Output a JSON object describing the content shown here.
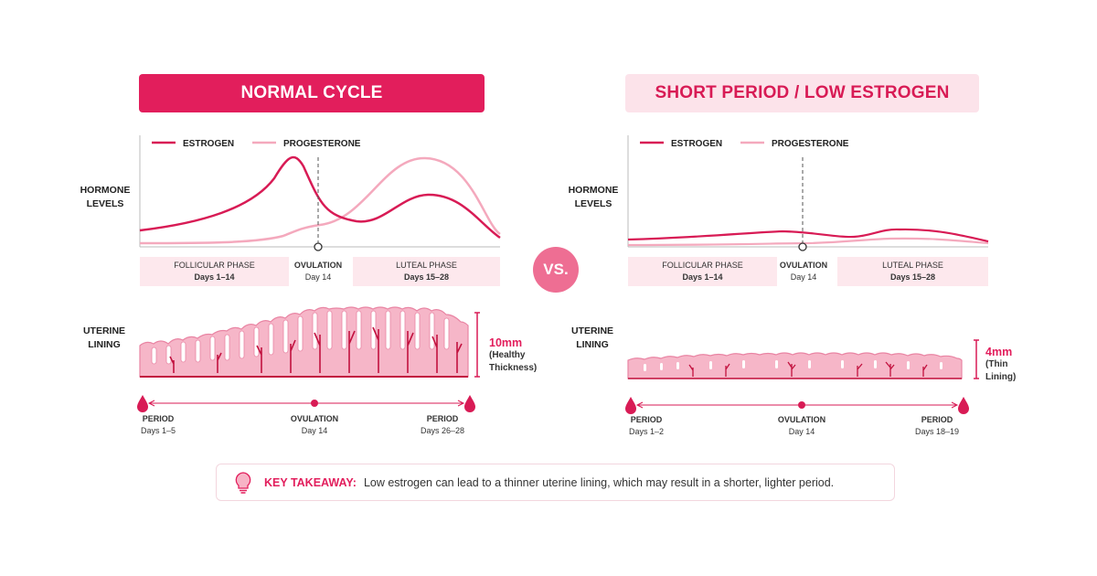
{
  "vs_label": "VS.",
  "takeaway": {
    "label": "KEY TAKEAWAY:",
    "text": "Low estrogen can lead to a thinner uterine lining, which may result in a shorter, lighter period."
  },
  "colors": {
    "accent": "#e21e5c",
    "estrogen": "#d81b55",
    "progesterone": "#f4a9bd",
    "lining": "#f6b6c8"
  },
  "panels": {
    "left": {
      "title": "NORMAL CYCLE",
      "hormone_label_1": "HORMONE",
      "hormone_label_2": "LEVELS",
      "legend_estrogen": "ESTROGEN",
      "legend_progesterone": "PROGESTERONE",
      "follicular_phase": "FOLLICULAR PHASE",
      "follicular_days": "Days 1–14",
      "ovulation": "OVULATION",
      "ovulation_day": "Day 14",
      "luteal_phase": "LUTEAL PHASE",
      "luteal_days": "Days 15–28",
      "uterine_1": "UTERINE",
      "uterine_2": "LINING",
      "thickness": "10mm",
      "thickness_note_1": "(Healthy",
      "thickness_note_2": "Thickness)",
      "period_start": "PERIOD",
      "period_start_days": "Days 1–5",
      "timeline_ovulation": "OVULATION",
      "timeline_ovulation_day": "Day 14",
      "period_end": "PERIOD",
      "period_end_days": "Days 26–28"
    },
    "right": {
      "title": "SHORT PERIOD / LOW ESTROGEN",
      "hormone_label_1": "HORMONE",
      "hormone_label_2": "LEVELS",
      "legend_estrogen": "ESTROGEN",
      "legend_progesterone": "PROGESTERONE",
      "follicular_phase": "FOLLICULAR PHASE",
      "follicular_days": "Days 1–14",
      "ovulation": "OVULATION",
      "ovulation_day": "Day 14",
      "luteal_phase": "LUTEAL PHASE",
      "luteal_days": "Days 15–28",
      "uterine_1": "UTERINE",
      "uterine_2": "LINING",
      "thickness": "4mm",
      "thickness_note_1": "(Thin",
      "thickness_note_2": "Lining)",
      "period_start": "PERIOD",
      "period_start_days": "Days 1–2",
      "timeline_ovulation": "OVULATION",
      "timeline_ovulation_day": "Day 14",
      "period_end": "PERIOD",
      "period_end_days": "Days 18–19"
    }
  }
}
